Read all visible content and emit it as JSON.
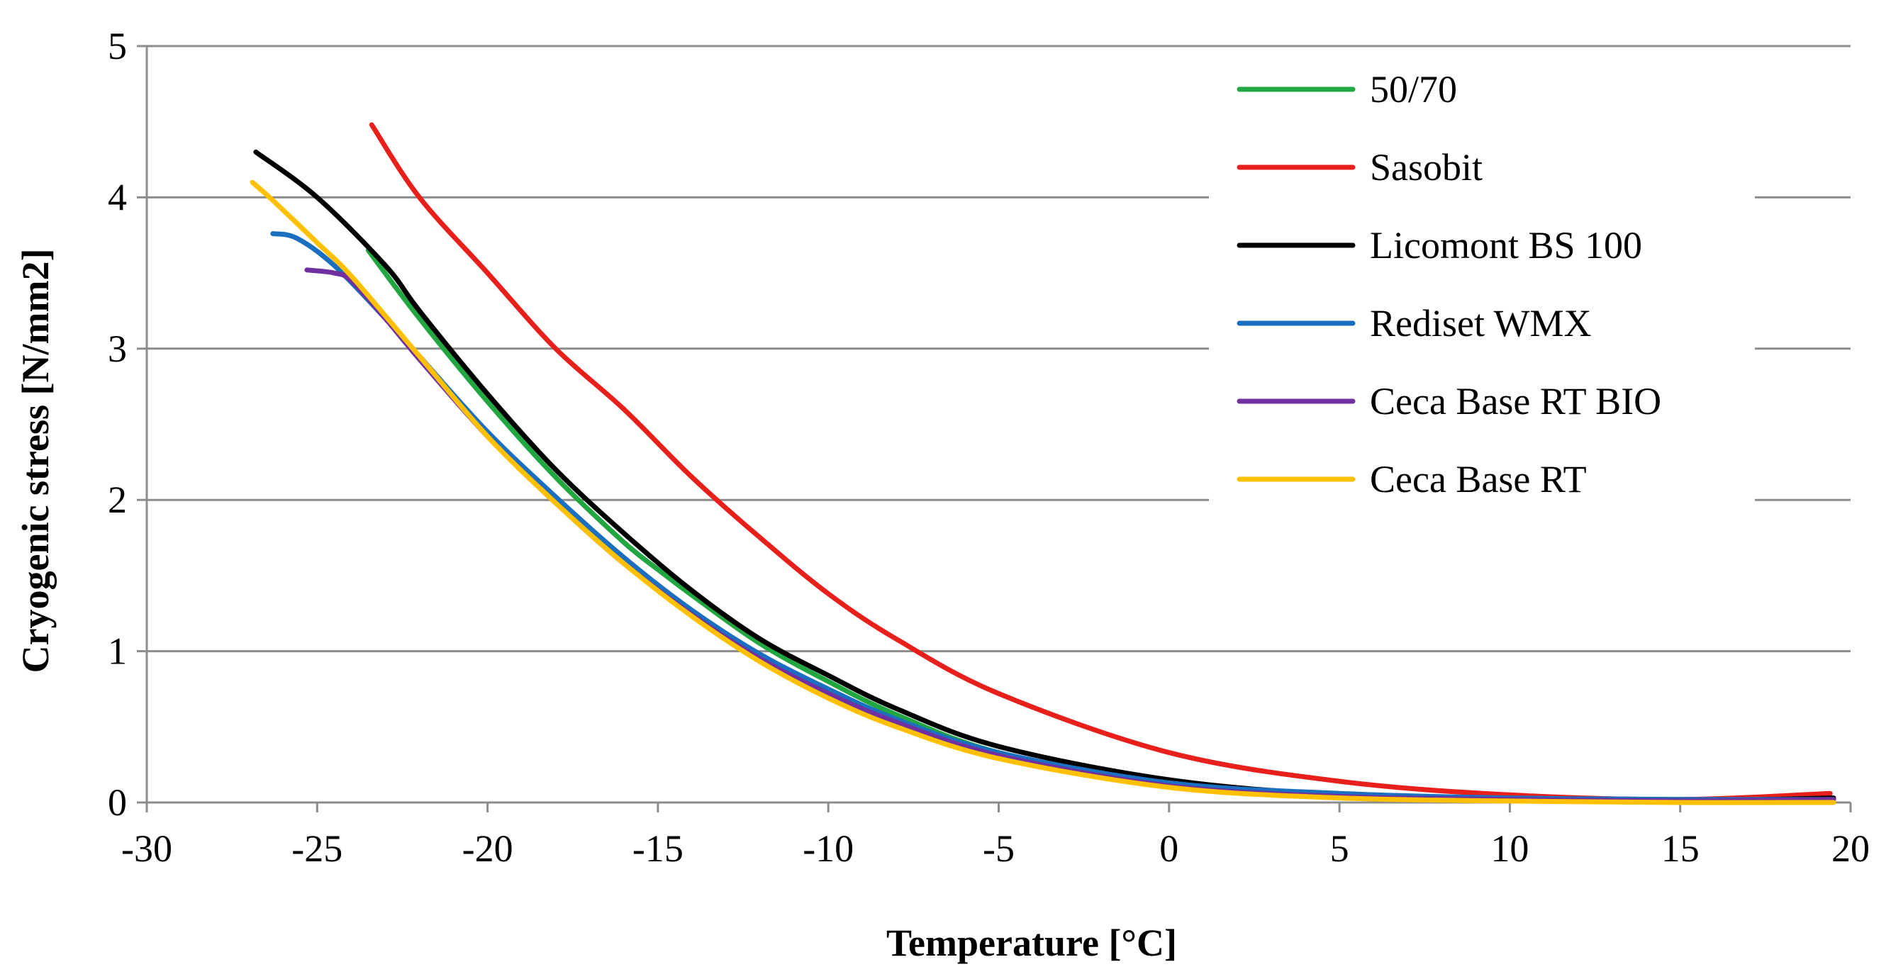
{
  "chart_data": {
    "type": "line",
    "title": "",
    "xlabel": "Temperature [°C]",
    "ylabel": "Cryogenic stress [N/mm2]",
    "xlim": [
      -30,
      20
    ],
    "ylim": [
      0,
      5
    ],
    "xticks": [
      -30,
      -25,
      -20,
      -15,
      -10,
      -5,
      0,
      5,
      10,
      15,
      20
    ],
    "yticks": [
      0,
      1,
      2,
      3,
      4,
      5
    ],
    "x_tick_labels": [
      "-30",
      "-25",
      "-20",
      "-15",
      "-10",
      "-5",
      "0",
      "5",
      "10",
      "15",
      "20"
    ],
    "y_tick_labels": [
      "0",
      "1",
      "2",
      "3",
      "4",
      "5"
    ],
    "grid": "horizontal",
    "legend_position": "top-right",
    "series": [
      {
        "name": "50/70",
        "color": "#21a641",
        "x": [
          -23.5,
          -22,
          -20,
          -18,
          -16,
          -15,
          -14,
          -12,
          -10,
          -8,
          -5,
          0,
          5,
          10,
          15,
          19.5
        ],
        "y": [
          3.65,
          3.2,
          2.65,
          2.15,
          1.72,
          1.54,
          1.37,
          1.05,
          0.8,
          0.58,
          0.33,
          0.12,
          0.05,
          0.02,
          0.01,
          0.02
        ]
      },
      {
        "name": "Sasobit",
        "color": "#e8201c",
        "x": [
          -23.4,
          -22,
          -20,
          -18,
          -16,
          -14,
          -12,
          -10,
          -8,
          -5,
          0,
          5,
          10,
          15,
          19.4
        ],
        "y": [
          4.48,
          4.0,
          3.5,
          3.0,
          2.6,
          2.15,
          1.75,
          1.38,
          1.08,
          0.72,
          0.33,
          0.14,
          0.05,
          0.02,
          0.06
        ]
      },
      {
        "name": "Licomont BS 100",
        "color": "#000000",
        "x": [
          -26.8,
          -25,
          -23,
          -22,
          -20,
          -18,
          -16,
          -14,
          -12,
          -10,
          -8,
          -5,
          0,
          5,
          10,
          15,
          19.5
        ],
        "y": [
          4.3,
          4.0,
          3.55,
          3.25,
          2.7,
          2.2,
          1.78,
          1.4,
          1.08,
          0.84,
          0.62,
          0.37,
          0.15,
          0.05,
          0.02,
          0.01,
          0.03
        ]
      },
      {
        "name": "Rediset WMX",
        "color": "#1b6fc0",
        "x": [
          -26.3,
          -25.6,
          -24.5,
          -23,
          -22,
          -20,
          -18,
          -16,
          -14,
          -12,
          -10,
          -8,
          -5,
          0,
          5,
          10,
          15,
          19.5
        ],
        "y": [
          3.76,
          3.73,
          3.55,
          3.2,
          2.95,
          2.45,
          2.02,
          1.62,
          1.27,
          0.98,
          0.75,
          0.55,
          0.33,
          0.13,
          0.06,
          0.03,
          0.02,
          0.02
        ]
      },
      {
        "name": "Ceca Base RT BIO",
        "color": "#7030a0",
        "x": [
          -25.3,
          -24.5,
          -24,
          -23,
          -22,
          -20,
          -18,
          -16,
          -14,
          -12,
          -10,
          -8,
          -5,
          0,
          5,
          10,
          15,
          19.5
        ],
        "y": [
          3.52,
          3.5,
          3.45,
          3.2,
          2.93,
          2.42,
          1.98,
          1.58,
          1.24,
          0.95,
          0.72,
          0.53,
          0.31,
          0.11,
          0.04,
          0.02,
          0.01,
          0.02
        ]
      },
      {
        "name": "Ceca Base RT",
        "color": "#ffc000",
        "x": [
          -26.9,
          -26.3,
          -25,
          -24,
          -22,
          -20,
          -18,
          -16,
          -14,
          -12,
          -10,
          -8,
          -5,
          0,
          5,
          10,
          15,
          19.5
        ],
        "y": [
          4.1,
          3.98,
          3.7,
          3.48,
          2.95,
          2.42,
          1.98,
          1.58,
          1.23,
          0.93,
          0.69,
          0.5,
          0.29,
          0.1,
          0.03,
          0.01,
          0.0,
          0.0
        ]
      }
    ]
  }
}
